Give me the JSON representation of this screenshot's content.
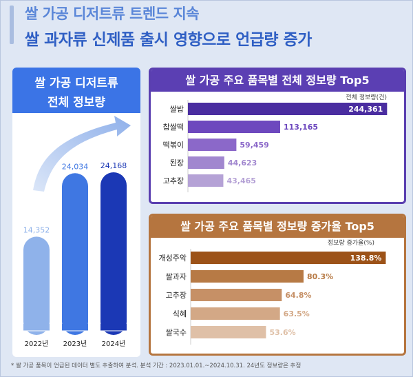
{
  "colors": {
    "primary": "#3b74e6",
    "purple": "#5b3fb3",
    "brown": "#b5753f",
    "background": "#dfe7f4"
  },
  "headline": {
    "line1": "쌀 가공 디저트류 트렌드 지속",
    "line2": "쌀 과자류 신제품 출시 영향으로 언급량 증가"
  },
  "left_panel": {
    "title_line1": "쌀 가공 디저트류",
    "title_line2": "전체 정보량"
  },
  "panel1": {
    "title": "쌀 가공 주요 품목별 전체 정보량 Top5",
    "unit_label": "전체 정보량(건)"
  },
  "panel2": {
    "title": "쌀 가공 주요 품목별 정보량 증가율 Top5",
    "unit_label": "정보량 증가율(%)"
  },
  "footnote": "* 쌀 가공 품목이 언급된 데이터 별도 추출하여 분석. 분석 기간 : 2023.01.01.~2024.10.31. 24년도 정보량은 추정",
  "chart_data": [
    {
      "type": "bar",
      "orientation": "vertical",
      "categories": [
        "2022년",
        "2023년",
        "2024년"
      ],
      "values": [
        14352,
        24034,
        24168
      ],
      "value_labels": [
        "14,352",
        "24,034",
        "24,168"
      ],
      "colors": [
        "#8fb2ea",
        "#3f77e2",
        "#1b38b5"
      ],
      "arrow": "rising"
    },
    {
      "type": "bar",
      "orientation": "horizontal",
      "categories": [
        "쌀밥",
        "찹쌀떡",
        "떡볶이",
        "된장",
        "고추장"
      ],
      "values": [
        244361,
        113165,
        59459,
        44623,
        43465
      ],
      "value_labels": [
        "244,361",
        "113,165",
        "59,459",
        "44,623",
        "43,465"
      ],
      "colors": [
        "#4a2da0",
        "#6d48be",
        "#8b68c9",
        "#a187cf",
        "#b5a2d6"
      ],
      "xlim": [
        0,
        250000
      ]
    },
    {
      "type": "bar",
      "orientation": "horizontal",
      "categories": [
        "개성주악",
        "쌀과자",
        "고추장",
        "식혜",
        "쌀국수"
      ],
      "values": [
        138.8,
        80.3,
        64.8,
        63.5,
        53.6
      ],
      "value_labels": [
        "138.8%",
        "80.3%",
        "64.8%",
        "63.5%",
        "53.6%"
      ],
      "colors": [
        "#9c5218",
        "#b77a45",
        "#c69066",
        "#d3a886",
        "#dfc0a7"
      ],
      "xlim": [
        0,
        142
      ]
    }
  ]
}
